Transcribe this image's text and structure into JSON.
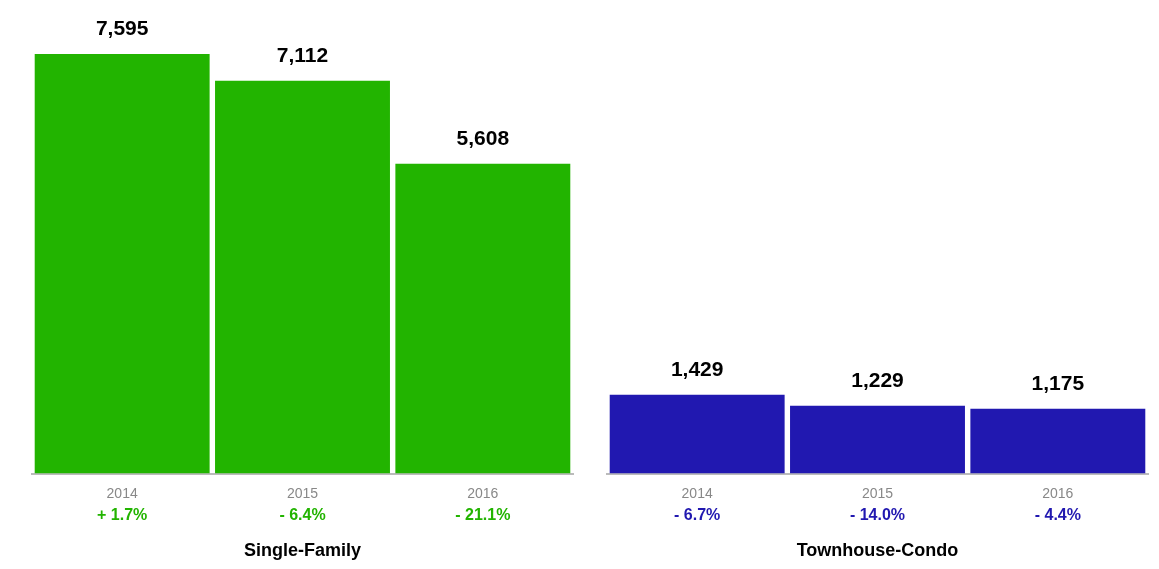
{
  "chart_data": [
    {
      "type": "bar",
      "xlabel": "Single-Family",
      "categories": [
        "2014",
        "2015",
        "2016"
      ],
      "values": [
        7595,
        7112,
        5608
      ],
      "value_labels": [
        "7,595",
        "7,112",
        "5,608"
      ],
      "color": "#22b400",
      "annotations": [
        "+ 1.7%",
        "- 6.4%",
        "- 21.1%"
      ]
    },
    {
      "type": "bar",
      "xlabel": "Townhouse-Condo",
      "categories": [
        "2014",
        "2015",
        "2016"
      ],
      "values": [
        1429,
        1229,
        1175
      ],
      "value_labels": [
        "1,429",
        "1,229",
        "1,175"
      ],
      "color": "#2118b0",
      "annotations": [
        "- 6.7%",
        "- 14.0%",
        "- 4.4%"
      ]
    }
  ]
}
